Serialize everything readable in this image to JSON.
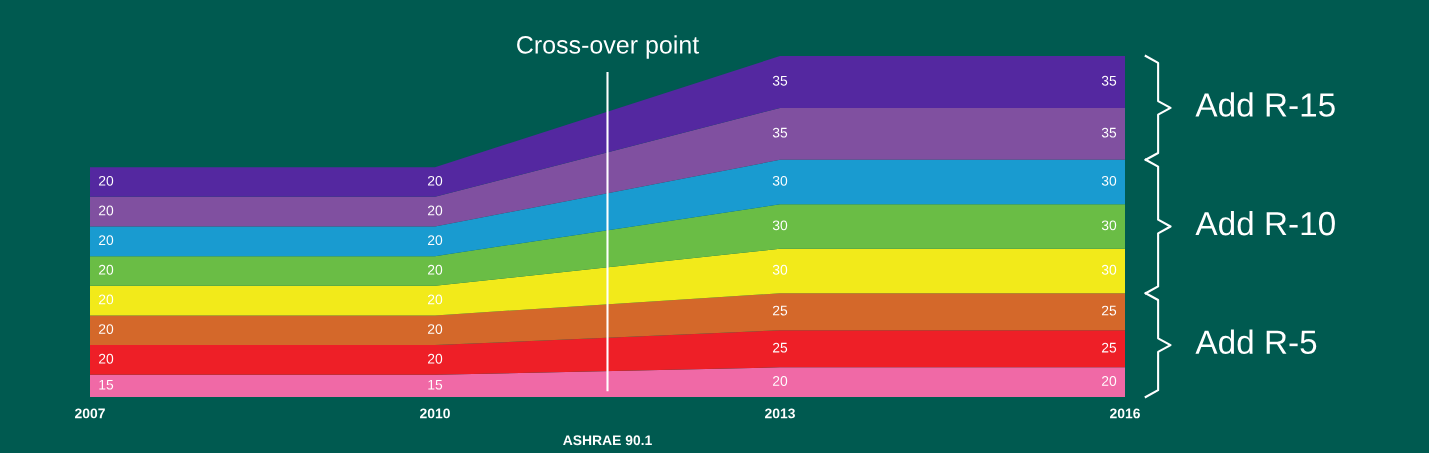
{
  "chart_data": {
    "type": "area",
    "stacked": true,
    "data_labels": true,
    "x": [
      2007,
      2010,
      2013,
      2016
    ],
    "xticks": [
      2007,
      2010,
      2013,
      2016
    ],
    "xlim": [
      2007,
      2016
    ],
    "xlabel": "ASHRAE 90.1",
    "legend": false,
    "grid": false,
    "tick_labels": "x",
    "series": [
      {
        "color": "#f069a6",
        "values": [
          15,
          15,
          20,
          20
        ]
      },
      {
        "color": "#ee1f27",
        "values": [
          20,
          20,
          25,
          25
        ]
      },
      {
        "color": "#d4682a",
        "values": [
          20,
          20,
          25,
          25
        ]
      },
      {
        "color": "#f2ea1a",
        "values": [
          20,
          20,
          30,
          30
        ]
      },
      {
        "color": "#6abd45",
        "values": [
          20,
          20,
          30,
          30
        ]
      },
      {
        "color": "#199bd0",
        "values": [
          20,
          20,
          30,
          30
        ]
      },
      {
        "color": "#8050a0",
        "values": [
          20,
          20,
          35,
          35
        ]
      },
      {
        "color": "#5428a0",
        "values": [
          20,
          20,
          35,
          35
        ]
      }
    ],
    "ref_lines": [
      {
        "axis": "x",
        "value": 2011.5,
        "label": "Cross-over point",
        "color": "#ffffff"
      }
    ],
    "annotations": [
      "Add R-15",
      "Add R-10",
      "Add R-5"
    ]
  }
}
